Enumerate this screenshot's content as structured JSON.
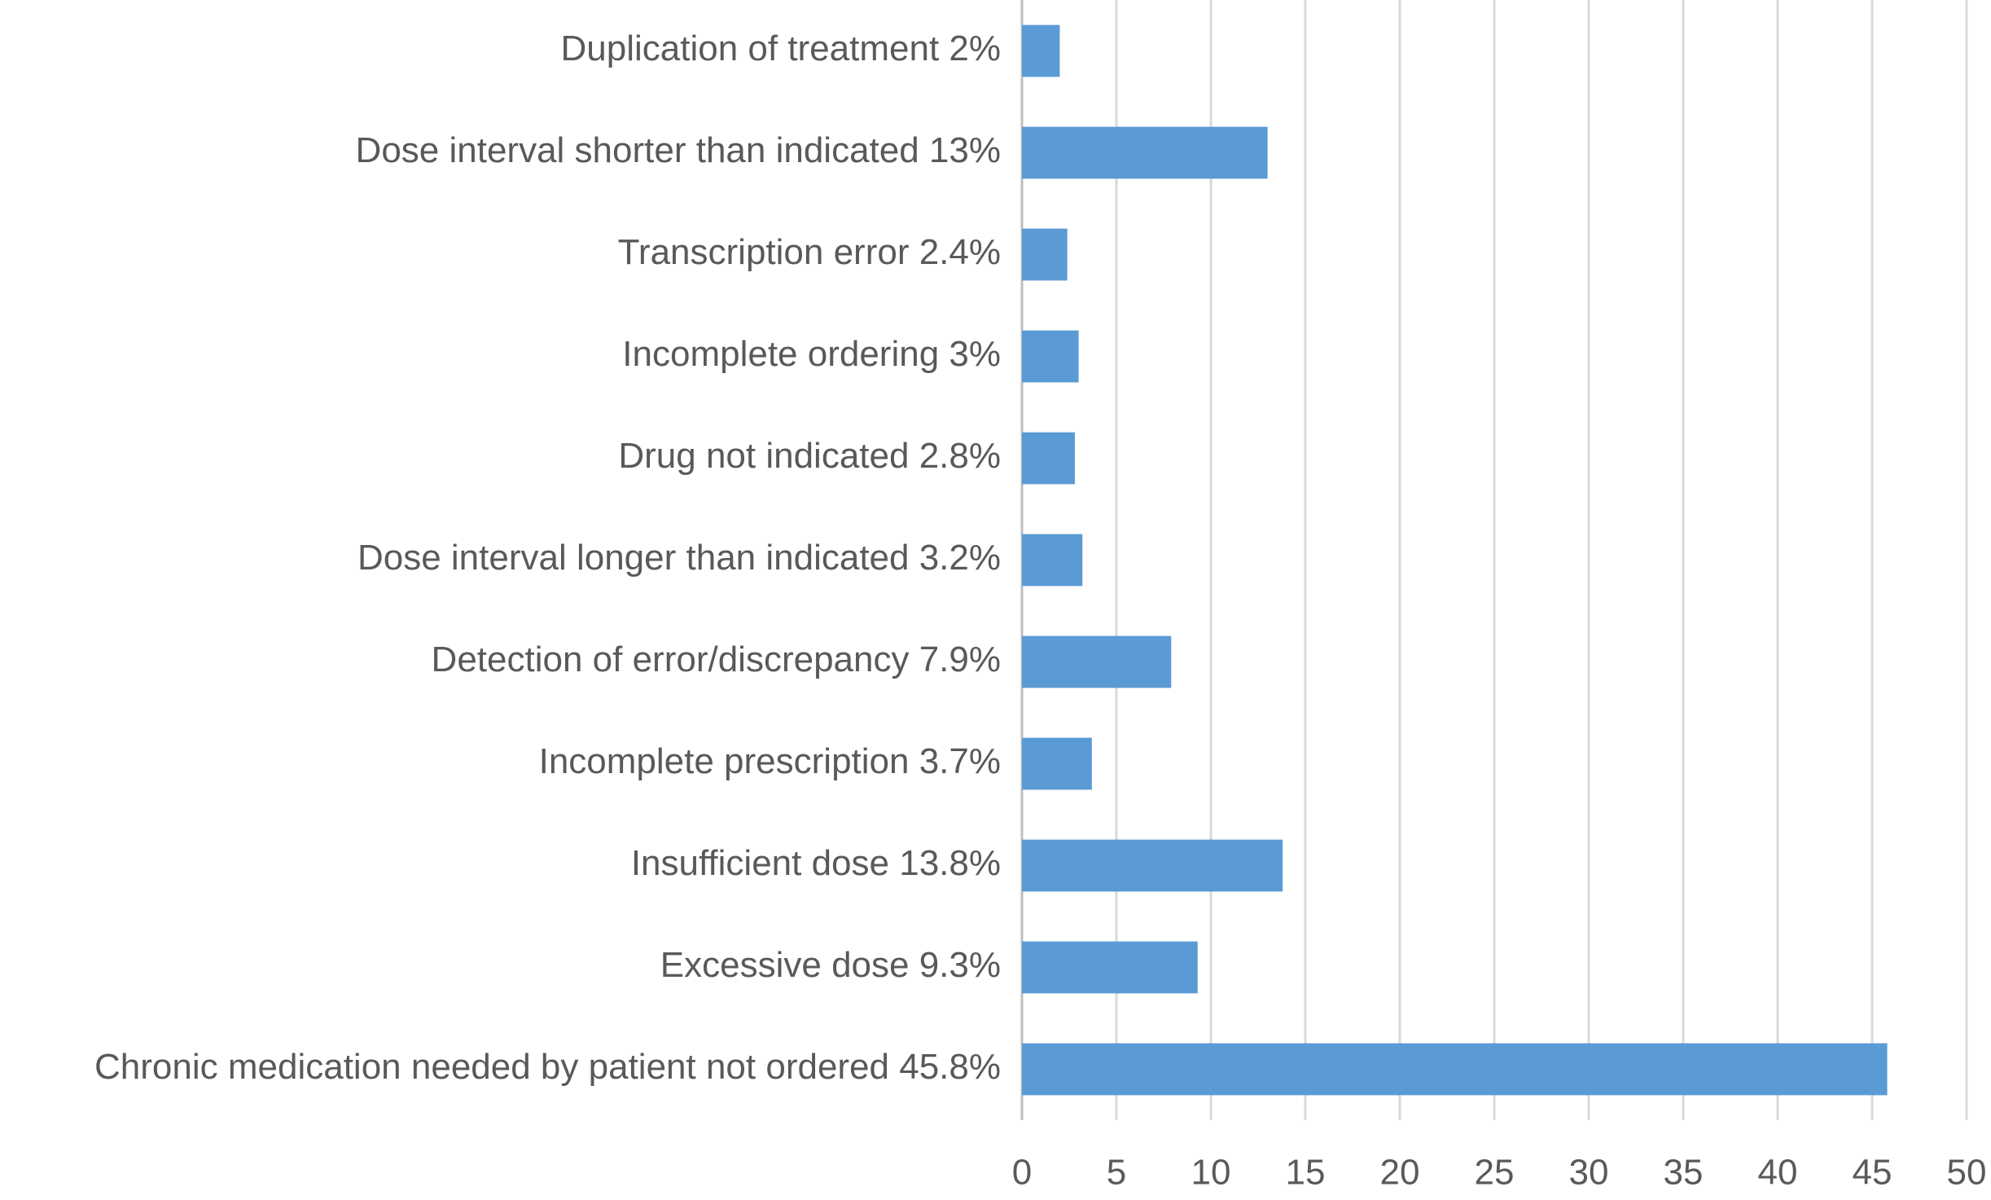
{
  "chart_data": {
    "type": "barh",
    "categories": [
      "Duplication of treatment 2%",
      "Dose interval shorter than indicated 13%",
      "Transcription error 2.4%",
      "Incomplete ordering 3%",
      "Drug not indicated 2.8%",
      "Dose interval longer than indicated 3.2%",
      "Detection of error/discrepancy 7.9%",
      "Incomplete prescription 3.7%",
      "Insufficient dose 13.8%",
      "Excessive dose 9.3%",
      "Chronic medication needed by patient not ordered 45.8%"
    ],
    "values": [
      2,
      13,
      2.4,
      3,
      2.8,
      3.2,
      7.9,
      3.7,
      13.8,
      9.3,
      45.8
    ],
    "color": "#5b9bd5",
    "xlim": [
      0,
      50
    ],
    "xticks": [
      0,
      5,
      10,
      15,
      20,
      25,
      30,
      35,
      40,
      45,
      50
    ],
    "grid": true
  }
}
